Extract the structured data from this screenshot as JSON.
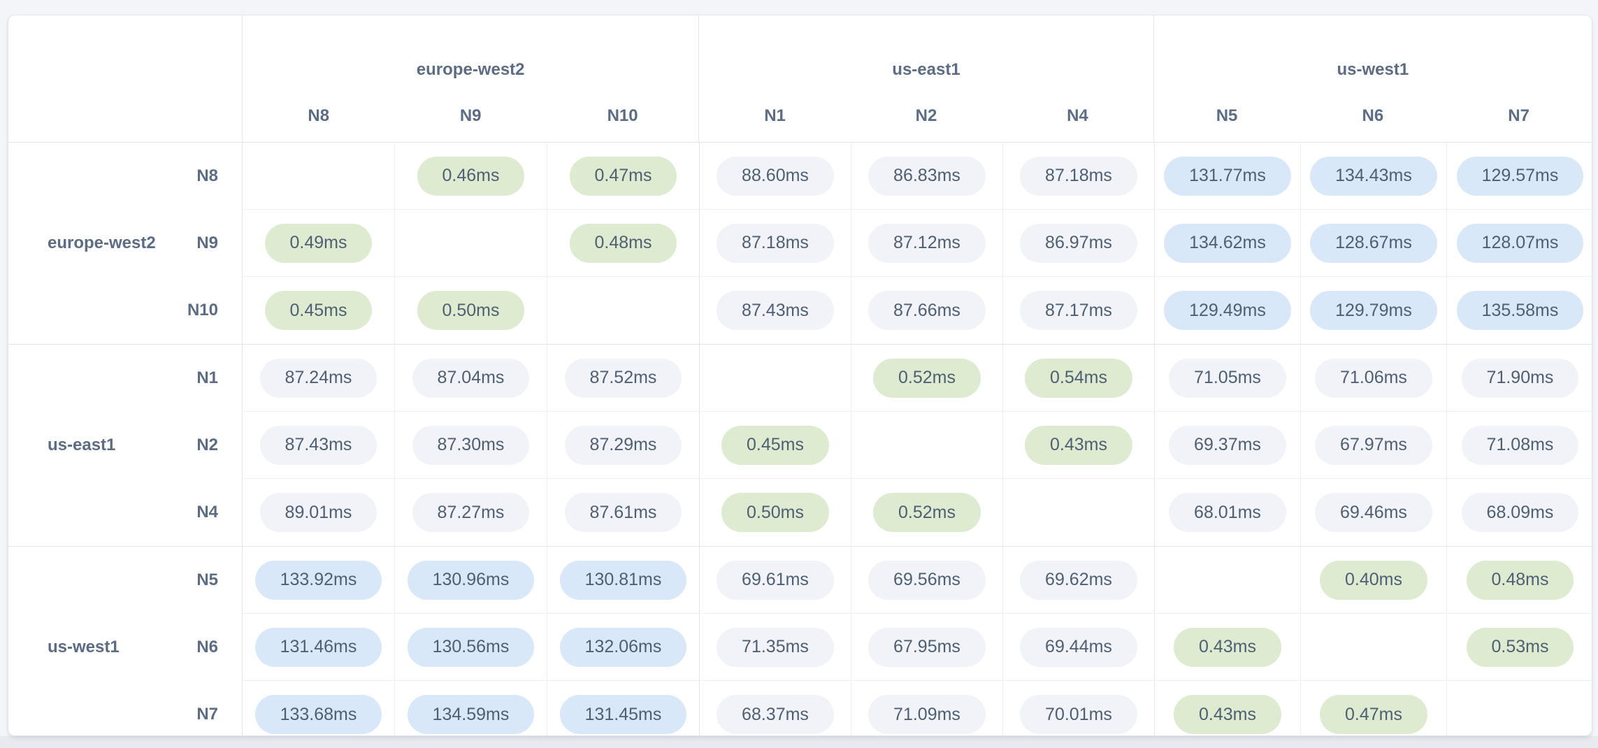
{
  "matrix": {
    "column_groups": [
      {
        "region": "europe-west2",
        "nodes": [
          "N8",
          "N9",
          "N10"
        ]
      },
      {
        "region": "us-east1",
        "nodes": [
          "N1",
          "N2",
          "N4"
        ]
      },
      {
        "region": "us-west1",
        "nodes": [
          "N5",
          "N6",
          "N7"
        ]
      }
    ],
    "row_groups": [
      {
        "region": "europe-west2",
        "rows": [
          {
            "node": "N8",
            "values": [
              "",
              "0.46ms",
              "0.47ms",
              "88.60ms",
              "86.83ms",
              "87.18ms",
              "131.77ms",
              "134.43ms",
              "129.57ms"
            ]
          },
          {
            "node": "N9",
            "values": [
              "0.49ms",
              "",
              "0.48ms",
              "87.18ms",
              "87.12ms",
              "86.97ms",
              "134.62ms",
              "128.67ms",
              "128.07ms"
            ]
          },
          {
            "node": "N10",
            "values": [
              "0.45ms",
              "0.50ms",
              "",
              "87.43ms",
              "87.66ms",
              "87.17ms",
              "129.49ms",
              "129.79ms",
              "135.58ms"
            ]
          }
        ]
      },
      {
        "region": "us-east1",
        "rows": [
          {
            "node": "N1",
            "values": [
              "87.24ms",
              "87.04ms",
              "87.52ms",
              "",
              "0.52ms",
              "0.54ms",
              "71.05ms",
              "71.06ms",
              "71.90ms"
            ]
          },
          {
            "node": "N2",
            "values": [
              "87.43ms",
              "87.30ms",
              "87.29ms",
              "0.45ms",
              "",
              "0.43ms",
              "69.37ms",
              "67.97ms",
              "71.08ms"
            ]
          },
          {
            "node": "N4",
            "values": [
              "89.01ms",
              "87.27ms",
              "87.61ms",
              "0.50ms",
              "0.52ms",
              "",
              "68.01ms",
              "69.46ms",
              "68.09ms"
            ]
          }
        ]
      },
      {
        "region": "us-west1",
        "rows": [
          {
            "node": "N5",
            "values": [
              "133.92ms",
              "130.96ms",
              "130.81ms",
              "69.61ms",
              "69.56ms",
              "69.62ms",
              "",
              "0.40ms",
              "0.48ms"
            ]
          },
          {
            "node": "N6",
            "values": [
              "131.46ms",
              "130.56ms",
              "132.06ms",
              "71.35ms",
              "67.95ms",
              "69.44ms",
              "0.43ms",
              "",
              "0.53ms"
            ]
          },
          {
            "node": "N7",
            "values": [
              "133.68ms",
              "134.59ms",
              "131.45ms",
              "68.37ms",
              "71.09ms",
              "70.01ms",
              "0.43ms",
              "0.47ms",
              ""
            ]
          }
        ]
      }
    ],
    "pill_colors": {
      "low_latency": "#deebd1",
      "mid_latency": "#f1f3f8",
      "high_latency": "#d9e8f8"
    },
    "text_colors": {
      "pill_text": "#4e5f74",
      "header_text": "#5b6c84"
    }
  }
}
